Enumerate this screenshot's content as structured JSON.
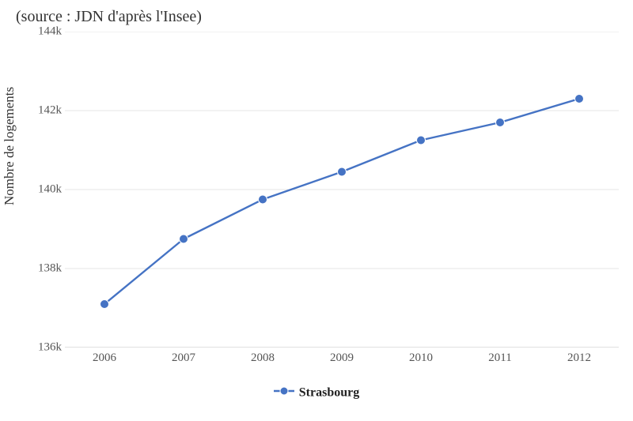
{
  "chart": {
    "type": "line",
    "subtitle": "(source : JDN d'après l'Insee)",
    "yaxis_title": "Nombre de logements",
    "series": {
      "name": "Strasbourg",
      "color": "#4573c4",
      "line_width": 2.4,
      "marker_radius": 5.5,
      "marker_fill": "#4573c4",
      "marker_stroke": "#ffffff",
      "years": [
        "2006",
        "2007",
        "2008",
        "2009",
        "2010",
        "2011",
        "2012"
      ],
      "values": [
        137100,
        138750,
        139750,
        140450,
        141250,
        141700,
        142300
      ]
    },
    "x": {
      "tick_color": "#cccccc",
      "axis_color": "#c0c0c0"
    },
    "y": {
      "min": 136000,
      "max": 144000,
      "tick_step": 2000,
      "tick_labels": [
        "136k",
        "138k",
        "140k",
        "142k",
        "144k"
      ],
      "grid_color": "#e6e6e6"
    },
    "background": "#ffffff",
    "font_family": "Georgia, serif",
    "title_fontsize": 20,
    "axis_title_fontsize": 17,
    "tick_fontsize": 15,
    "legend_fontsize": 16
  }
}
